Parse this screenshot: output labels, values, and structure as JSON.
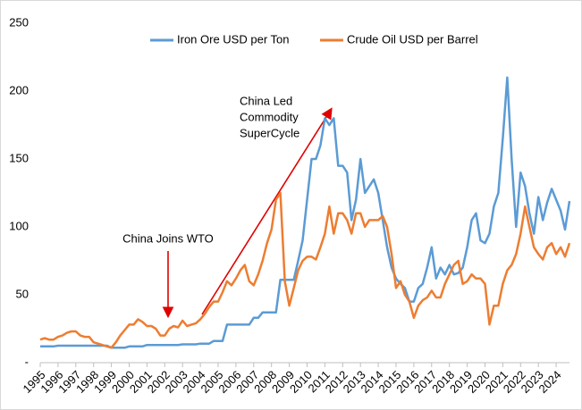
{
  "chart_data": {
    "type": "line",
    "x": [
      1995,
      1995.25,
      1995.5,
      1995.75,
      1996,
      1996.25,
      1996.5,
      1996.75,
      1997,
      1997.25,
      1997.5,
      1997.75,
      1998,
      1998.25,
      1998.5,
      1998.75,
      1999,
      1999.25,
      1999.5,
      1999.75,
      2000,
      2000.25,
      2000.5,
      2000.75,
      2001,
      2001.25,
      2001.5,
      2001.75,
      2002,
      2002.25,
      2002.5,
      2002.75,
      2003,
      2003.25,
      2003.5,
      2003.75,
      2004,
      2004.25,
      2004.5,
      2004.75,
      2005,
      2005.25,
      2005.5,
      2005.75,
      2006,
      2006.25,
      2006.5,
      2006.75,
      2007,
      2007.25,
      2007.5,
      2007.75,
      2008,
      2008.25,
      2008.5,
      2008.75,
      2009,
      2009.25,
      2009.5,
      2009.75,
      2010,
      2010.25,
      2010.5,
      2010.75,
      2011,
      2011.25,
      2011.5,
      2011.75,
      2012,
      2012.25,
      2012.5,
      2012.75,
      2013,
      2013.25,
      2013.5,
      2013.75,
      2014,
      2014.25,
      2014.5,
      2014.75,
      2015,
      2015.25,
      2015.5,
      2015.75,
      2016,
      2016.25,
      2016.5,
      2016.75,
      2017,
      2017.25,
      2017.5,
      2017.75,
      2018,
      2018.25,
      2018.5,
      2018.75,
      2019,
      2019.25,
      2019.5,
      2019.75,
      2020,
      2020.25,
      2020.5,
      2020.75,
      2021,
      2021.25,
      2021.5,
      2021.75,
      2022,
      2022.25,
      2022.5,
      2022.75,
      2023,
      2023.25,
      2023.5,
      2023.75,
      2024,
      2024.25,
      2024.5,
      2024.75
    ],
    "series": [
      {
        "name": "Iron Ore USD per Ton",
        "color": "#5b9bd5",
        "values": [
          12,
          12,
          12,
          12,
          12.5,
          12.5,
          12.5,
          12.5,
          12.5,
          12.5,
          12.5,
          12.5,
          12.5,
          12.5,
          12.5,
          12.5,
          11,
          11,
          11,
          11,
          12,
          12,
          12,
          12,
          13,
          13,
          13,
          13,
          13,
          13,
          13,
          13,
          13.5,
          13.5,
          13.5,
          13.5,
          14,
          14,
          14,
          16,
          16,
          16,
          28,
          28,
          28,
          28,
          28,
          28,
          33,
          33,
          37,
          37,
          37,
          37,
          61,
          61,
          61,
          61,
          75,
          90,
          120,
          150,
          150,
          160,
          180,
          175,
          180,
          145,
          145,
          140,
          105,
          120,
          150,
          125,
          130,
          135,
          125,
          105,
          85,
          70,
          62,
          58,
          55,
          45,
          45,
          55,
          58,
          70,
          85,
          62,
          70,
          65,
          72,
          65,
          66,
          70,
          85,
          105,
          110,
          90,
          88,
          95,
          115,
          125,
          165,
          210,
          150,
          100,
          140,
          130,
          110,
          95,
          122,
          105,
          118,
          128,
          120,
          112,
          98,
          119
        ]
      },
      {
        "name": "Crude Oil USD per Barrel",
        "color": "#ed7d31",
        "values": [
          17,
          18,
          17,
          17,
          19,
          20,
          22,
          23,
          23,
          20,
          19,
          19,
          15,
          14,
          13,
          12,
          11,
          15,
          20,
          24,
          28,
          28,
          32,
          30,
          27,
          27,
          25,
          20,
          20,
          25,
          27,
          26,
          31,
          27,
          28,
          29,
          32,
          36,
          41,
          45,
          45,
          52,
          60,
          57,
          62,
          68,
          72,
          60,
          57,
          65,
          75,
          88,
          98,
          120,
          125,
          60,
          42,
          55,
          68,
          75,
          78,
          78,
          76,
          85,
          95,
          115,
          95,
          110,
          110,
          105,
          95,
          110,
          110,
          100,
          105,
          105,
          105,
          108,
          100,
          80,
          55,
          60,
          50,
          45,
          33,
          42,
          46,
          48,
          53,
          48,
          48,
          58,
          65,
          72,
          75,
          58,
          60,
          65,
          62,
          62,
          58,
          28,
          42,
          42,
          58,
          68,
          72,
          80,
          95,
          115,
          100,
          85,
          80,
          76,
          85,
          88,
          80,
          85,
          78,
          88
        ]
      }
    ],
    "xlim": [
      1995,
      2024.75
    ],
    "xticks": [
      1995,
      1996,
      1997,
      1998,
      1999,
      2000,
      2001,
      2002,
      2003,
      2004,
      2005,
      2006,
      2007,
      2008,
      2009,
      2010,
      2011,
      2012,
      2013,
      2014,
      2015,
      2016,
      2017,
      2018,
      2019,
      2020,
      2021,
      2022,
      2023,
      2024
    ],
    "ylim": [
      0,
      250
    ],
    "yticks": [
      {
        "value": 0,
        "label": "-"
      },
      50,
      100,
      150,
      200,
      250
    ],
    "annotations": [
      [
        "China Joins WTO"
      ],
      [
        "China Led",
        "Commodity",
        "SuperCycle"
      ]
    ]
  }
}
